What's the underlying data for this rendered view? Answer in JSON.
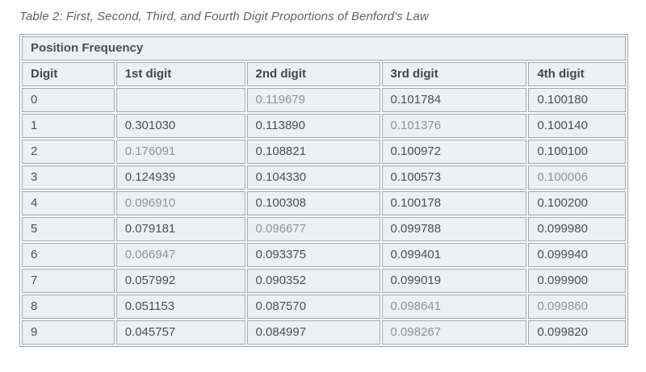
{
  "caption": "Table 2: First, Second, Third, and Fourth Digit Proportions of Benford's Law",
  "table": {
    "title": "Position Frequency",
    "columns": [
      "Digit",
      "1st digit",
      "2nd digit",
      "3rd digit",
      "4th digit"
    ],
    "column_width_pct": [
      15.5,
      21.6,
      22.3,
      24.3,
      16.3
    ],
    "rows": [
      {
        "digit": "0",
        "values": [
          "",
          "0.119679",
          "0.101784",
          "0.100180"
        ],
        "muted": [
          false,
          true,
          false,
          false
        ]
      },
      {
        "digit": "1",
        "values": [
          "0.301030",
          "0.113890",
          "0.101376",
          "0.100140"
        ],
        "muted": [
          false,
          false,
          true,
          false
        ]
      },
      {
        "digit": "2",
        "values": [
          "0.176091",
          "0.108821",
          "0.100972",
          "0.100100"
        ],
        "muted": [
          true,
          false,
          false,
          false
        ]
      },
      {
        "digit": "3",
        "values": [
          "0.124939",
          "0.104330",
          "0.100573",
          "0.100006"
        ],
        "muted": [
          false,
          false,
          false,
          true
        ]
      },
      {
        "digit": "4",
        "values": [
          "0.096910",
          "0.100308",
          "0.100178",
          "0.100200"
        ],
        "muted": [
          true,
          false,
          false,
          false
        ]
      },
      {
        "digit": "5",
        "values": [
          "0.079181",
          "0.096677",
          "0.099788",
          "0.099980"
        ],
        "muted": [
          false,
          true,
          false,
          false
        ]
      },
      {
        "digit": "6",
        "values": [
          "0.066947",
          "0.093375",
          "0.099401",
          "0.099940"
        ],
        "muted": [
          true,
          false,
          false,
          false
        ]
      },
      {
        "digit": "7",
        "values": [
          "0.057992",
          "0.090352",
          "0.099019",
          "0.099900"
        ],
        "muted": [
          false,
          false,
          false,
          false
        ]
      },
      {
        "digit": "8",
        "values": [
          "0.051153",
          "0.087570",
          "0.098641",
          "0.099860"
        ],
        "muted": [
          false,
          false,
          true,
          true
        ]
      },
      {
        "digit": "9",
        "values": [
          "0.045757",
          "0.084997",
          "0.098267",
          "0.099820"
        ],
        "muted": [
          false,
          false,
          true,
          false
        ]
      }
    ],
    "colors": {
      "cell_background": "#edf0f3",
      "border": "#9aa0a6",
      "text_dark": "#54585c",
      "text_muted": "#8e9398",
      "caption_text": "#5f6368"
    }
  },
  "chart_data": {
    "type": "table",
    "title": "Position Frequency",
    "caption": "Table 2: First, Second, Third, and Fourth Digit Proportions of Benford's Law",
    "columns": [
      "Digit",
      "1st digit",
      "2nd digit",
      "3rd digit",
      "4th digit"
    ],
    "rows": [
      [
        "0",
        null,
        0.119679,
        0.101784,
        0.10018
      ],
      [
        "1",
        0.30103,
        0.11389,
        0.101376,
        0.10014
      ],
      [
        "2",
        0.176091,
        0.108821,
        0.100972,
        0.1001
      ],
      [
        "3",
        0.124939,
        0.10433,
        0.100573,
        0.100006
      ],
      [
        "4",
        0.09691,
        0.100308,
        0.100178,
        0.1002
      ],
      [
        "5",
        0.079181,
        0.096677,
        0.099788,
        0.09998
      ],
      [
        "6",
        0.066947,
        0.093375,
        0.099401,
        0.09994
      ],
      [
        "7",
        0.057992,
        0.090352,
        0.099019,
        0.0999
      ],
      [
        "8",
        0.051153,
        0.08757,
        0.098641,
        0.09986
      ],
      [
        "9",
        0.045757,
        0.084997,
        0.098267,
        0.09982
      ]
    ]
  }
}
